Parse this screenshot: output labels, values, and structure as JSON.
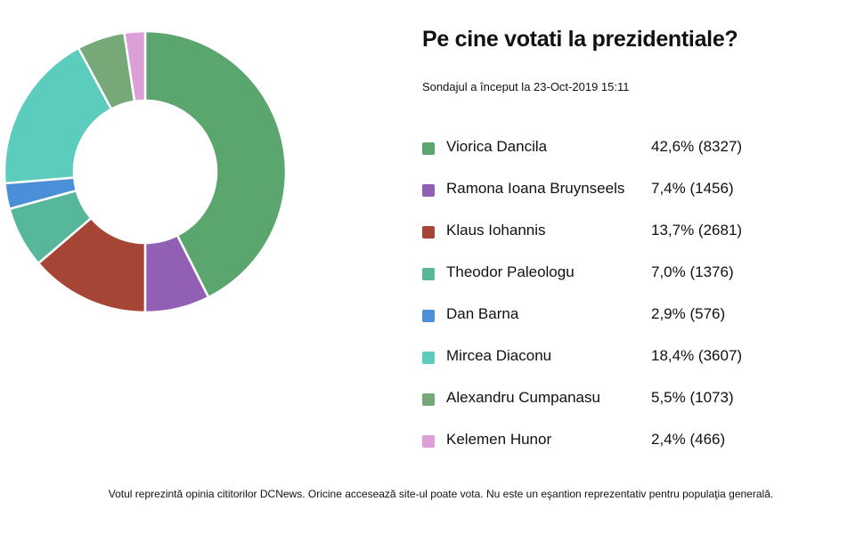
{
  "title": "Pe cine votati la prezidentiale?",
  "subtitle": "Sondajul a început la 23-Oct-2019 15:11",
  "footer": "Votul reprezintă opinia cititorilor DCNews. Oricine accesează site-ul poate vota. Nu este un eşantion reprezentativ pentru populaţia generală.",
  "chart_data": {
    "type": "pie",
    "variant": "donut",
    "title": "Pe cine votati la prezidentiale?",
    "legend_position": "right",
    "categories": [
      "Viorica Dancila",
      "Ramona Ioana Bruynseels",
      "Klaus Iohannis",
      "Theodor Paleologu",
      "Dan Barna",
      "Mircea Diaconu",
      "Alexandru Cumpanasu",
      "Kelemen Hunor"
    ],
    "values": [
      8327,
      1456,
      2681,
      1376,
      576,
      3607,
      1073,
      466
    ],
    "labels": [
      "42,6% (8327)",
      "7,4% (1456)",
      "13,7% (2681)",
      "7,0% (1376)",
      "2,9% (576)",
      "18,4% (3607)",
      "5,5% (1073)",
      "2,4% (466)"
    ],
    "colors": [
      "#5ba56e",
      "#9160b4",
      "#a54536",
      "#57b79b",
      "#4a8fd8",
      "#5ccdbd",
      "#77a878",
      "#dd9fd8"
    ]
  }
}
